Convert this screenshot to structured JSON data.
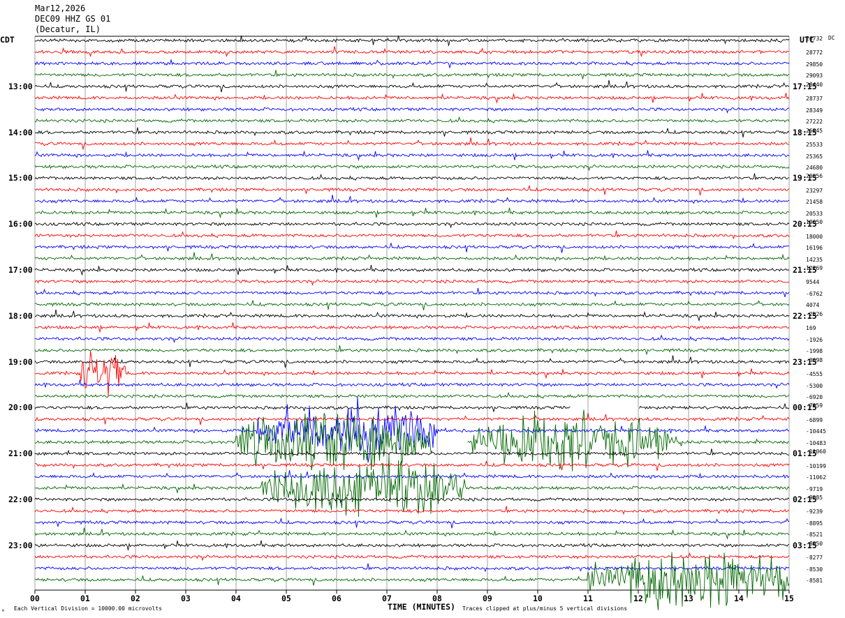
{
  "header": {
    "date": "Mar12,2026",
    "station": "DEC09 HHZ GS 01",
    "location": "(Decatur, IL)"
  },
  "left_zone": "CDT",
  "right_zone": "UTC",
  "dc_label": "DC",
  "footer": {
    "scale": "Each Vertical Division = 10000.00 microvolts",
    "clip": "Traces clipped at plus/minus 5 vertical divisions",
    "corner": "ᴺ"
  },
  "chart_data": {
    "type": "line",
    "title": "",
    "xlabel": "TIME (MINUTES)",
    "x_ticks": [
      "00",
      "01",
      "02",
      "03",
      "04",
      "05",
      "06",
      "07",
      "08",
      "09",
      "10",
      "11",
      "12",
      "13",
      "14",
      "15"
    ],
    "xlim": [
      0,
      15
    ],
    "grid": true,
    "trace_colors": [
      "#000000",
      "#ff0000",
      "#0000ff",
      "#006600"
    ],
    "left_hour_labels": [
      "13:00",
      "14:00",
      "15:00",
      "16:00",
      "17:00",
      "18:00",
      "19:00",
      "20:00",
      "21:00",
      "22:00",
      "23:00"
    ],
    "right_hour_labels": [
      "17:15",
      "18:15",
      "19:15",
      "20:15",
      "21:15",
      "22:15",
      "23:15",
      "00:15",
      "01:15",
      "02:15",
      "03:15"
    ],
    "dc_offsets": [
      "26732",
      "28772",
      "29850",
      "29093",
      "28440",
      "28737",
      "28349",
      "27222",
      "26845",
      "25533",
      "25365",
      "24680",
      "20656",
      "23297",
      "21458",
      "20533",
      "19650",
      "18000",
      "16196",
      "14235",
      "12269",
      "9544",
      "-6762",
      "4074",
      "-2526",
      "169",
      "-1926",
      "-1998",
      "-3698",
      "-4555",
      "-5300",
      "-6920",
      "-7959",
      "-6899",
      "-10445",
      "-10483",
      "-11060",
      "-10199",
      "-11062",
      "-9719",
      "-9585",
      "-9239",
      "-8895",
      "-8521",
      "-8850",
      "-8277",
      "-8530",
      "-8581"
    ],
    "events": [
      {
        "trace": 29,
        "from": 0.9,
        "to": 1.8,
        "amp": 4
      },
      {
        "trace": 34,
        "from": 4.4,
        "to": 8.0,
        "amp": 5
      },
      {
        "trace": 35,
        "from": 4.0,
        "to": 7.9,
        "amp": 5
      },
      {
        "trace": 35,
        "from": 8.7,
        "to": 12.8,
        "amp": 5
      },
      {
        "trace": 39,
        "from": 4.5,
        "to": 8.6,
        "amp": 5
      },
      {
        "trace": 47,
        "from": 11.0,
        "to": 15.0,
        "amp": 5
      }
    ],
    "gaps": [
      {
        "trace": 32,
        "from": 10.65,
        "to": 12.0
      },
      {
        "trace": 35,
        "from": 7.9,
        "to": 8.6
      }
    ]
  }
}
